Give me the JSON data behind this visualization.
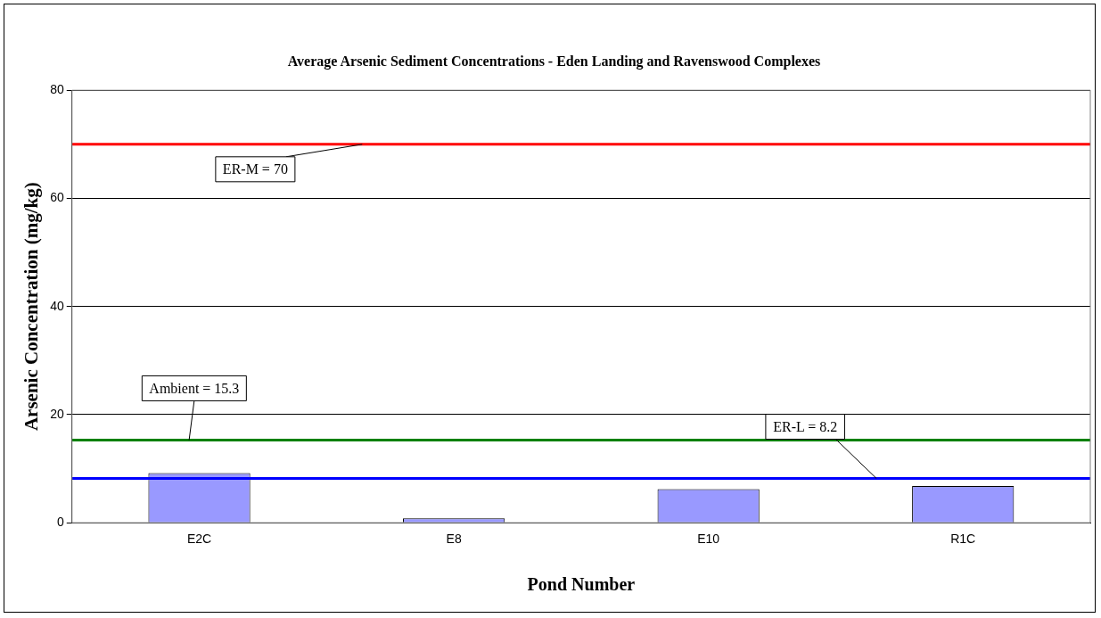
{
  "chart_data": {
    "type": "bar",
    "title": "Average Arsenic Sediment Concentrations - Eden Landing and Ravenswood Complexes",
    "xlabel": "Pond Number",
    "ylabel": "Arsenic Concentration (mg/kg)",
    "categories": [
      "E2C",
      "E8",
      "E10",
      "R1C"
    ],
    "values": [
      9.2,
      0.8,
      6.2,
      6.8
    ],
    "color": "#9999ff",
    "ylim": [
      0,
      80
    ],
    "yticks": [
      0,
      20,
      40,
      60,
      80
    ],
    "grid": "y",
    "legend": false,
    "ref_lines": [
      {
        "axis": "y",
        "value": 70,
        "label": "ER-M = 70",
        "color": "#ff0000"
      },
      {
        "axis": "y",
        "value": 15.3,
        "label": "Ambient = 15.3",
        "color": "#008000"
      },
      {
        "axis": "y",
        "value": 8.2,
        "label": "ER-L = 8.2",
        "color": "#0000ff"
      }
    ]
  }
}
